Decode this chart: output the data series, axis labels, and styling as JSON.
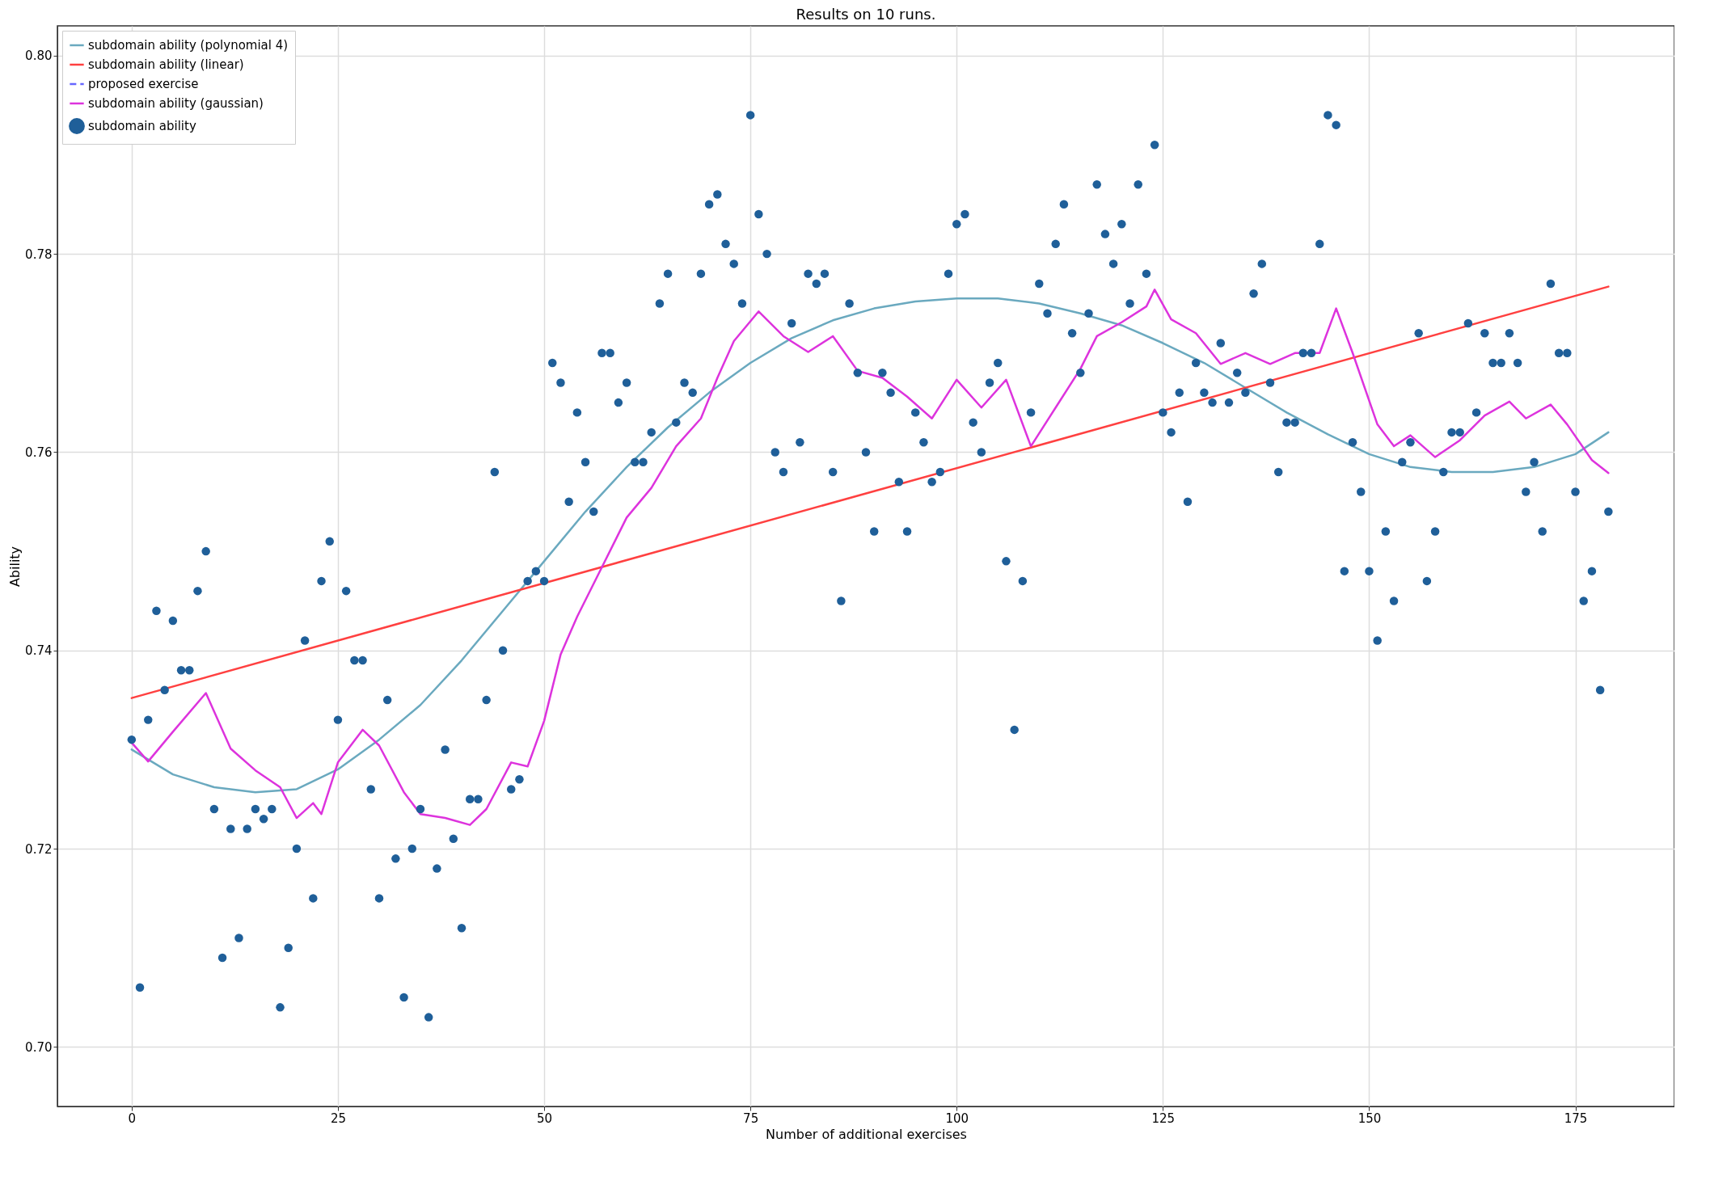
{
  "chart_data": {
    "type": "scatter",
    "title": "Results on 10 runs.",
    "xlabel": "Number of additional exercises",
    "ylabel": "Ability",
    "xlim": [
      -9,
      187
    ],
    "xticks": [
      0,
      25,
      50,
      75,
      100,
      125,
      150,
      175
    ],
    "ylim": [
      0.694,
      0.803
    ],
    "yticks": [
      {
        "value": 0.7,
        "label": "0.70"
      },
      0.72,
      0.74,
      0.76,
      0.78,
      {
        "value": 0.8,
        "label": "0.80"
      }
    ],
    "grid": true,
    "legend": "top left",
    "x": [
      0,
      1,
      2,
      3,
      4,
      5,
      6,
      7,
      8,
      9,
      10,
      11,
      12,
      13,
      14,
      15,
      16,
      17,
      18,
      19,
      20,
      21,
      22,
      23,
      24,
      25,
      26,
      27,
      28,
      29,
      30,
      31,
      32,
      33,
      34,
      35,
      36,
      37,
      38,
      39,
      40,
      41,
      42,
      43,
      44,
      45,
      46,
      47,
      48,
      49,
      50,
      51,
      52,
      53,
      54,
      55,
      56,
      57,
      58,
      59,
      60,
      61,
      62,
      63,
      64,
      65,
      66,
      67,
      68,
      69,
      70,
      71,
      72,
      73,
      74,
      75,
      76,
      77,
      78,
      79,
      80,
      81,
      82,
      83,
      84,
      85,
      86,
      87,
      88,
      89,
      90,
      91,
      92,
      93,
      94,
      95,
      96,
      97,
      98,
      99,
      100,
      101,
      102,
      103,
      104,
      105,
      106,
      107,
      108,
      109,
      110,
      111,
      112,
      113,
      114,
      115,
      116,
      117,
      118,
      119,
      120,
      121,
      122,
      123,
      124,
      125,
      126,
      127,
      128,
      129,
      130,
      131,
      132,
      133,
      134,
      135,
      136,
      137,
      138,
      139,
      140,
      141,
      142,
      143,
      144,
      145,
      146,
      147,
      148,
      149,
      150,
      151,
      152,
      153,
      154,
      155,
      156,
      157,
      158,
      159,
      160,
      161,
      162,
      163,
      164,
      165,
      166,
      167,
      168,
      169,
      170,
      171,
      172,
      173,
      174,
      175,
      176,
      177,
      178,
      179
    ],
    "series": [
      {
        "name": "subdomain ability (polynomial 4)",
        "type": "line",
        "color": "#6aa9bf",
        "line_style": "solid",
        "x": [
          0,
          5,
          10,
          15,
          20,
          25,
          30,
          35,
          40,
          45,
          50,
          55,
          60,
          65,
          70,
          75,
          80,
          85,
          90,
          95,
          100,
          105,
          110,
          115,
          120,
          125,
          130,
          135,
          140,
          145,
          150,
          155,
          160,
          165,
          170,
          175,
          179
        ],
        "values": [
          0.73,
          0.7275,
          0.7262,
          0.7257,
          0.726,
          0.728,
          0.731,
          0.7345,
          0.739,
          0.744,
          0.749,
          0.754,
          0.7585,
          0.7625,
          0.766,
          0.769,
          0.7715,
          0.7733,
          0.7745,
          0.7752,
          0.7755,
          0.7755,
          0.775,
          0.774,
          0.7728,
          0.771,
          0.769,
          0.7665,
          0.764,
          0.7618,
          0.7598,
          0.7585,
          0.758,
          0.758,
          0.7585,
          0.7598,
          0.762
        ]
      },
      {
        "name": "subdomain ability (linear)",
        "type": "line",
        "color": "#ff4040",
        "line_style": "solid",
        "x": [
          0,
          179
        ],
        "values": [
          0.7352,
          0.7767
        ]
      },
      {
        "name": "proposed exercise",
        "type": "line",
        "color": "#6666ff",
        "line_style": "dashed",
        "values": [
          null,
          null,
          null,
          null,
          null,
          null,
          null,
          null,
          null,
          null,
          null,
          null,
          null,
          null,
          null,
          null,
          null,
          null,
          null,
          null,
          null,
          null,
          null,
          null,
          null,
          null,
          null,
          null,
          null,
          null,
          null,
          null,
          null,
          null,
          null,
          null,
          null,
          null,
          null,
          null,
          null,
          null,
          null,
          null,
          null,
          null,
          null,
          null,
          null,
          null,
          null,
          null,
          null,
          null,
          null,
          null,
          null,
          null,
          null,
          null,
          null,
          null,
          null,
          null,
          null,
          null,
          null,
          null,
          null,
          null,
          null,
          null,
          null,
          null,
          null,
          null,
          null,
          null,
          null,
          null,
          null,
          null,
          null,
          null,
          null,
          null,
          null,
          null,
          null,
          null,
          null,
          null,
          null,
          null,
          null,
          null,
          null,
          null,
          null,
          null,
          null,
          null,
          null,
          null,
          null,
          null,
          null,
          null,
          null,
          null,
          null,
          null,
          null,
          null,
          null,
          null,
          null,
          null,
          null,
          null,
          null,
          null,
          null,
          null,
          null,
          null,
          null,
          null,
          null,
          null,
          null,
          null,
          null,
          null,
          null,
          null,
          null,
          null,
          null,
          null,
          null,
          null,
          null,
          null,
          null,
          null,
          null,
          null,
          null,
          null,
          null,
          null,
          null,
          null,
          null,
          null,
          null,
          null,
          null,
          null,
          null,
          null,
          null,
          null,
          null,
          null,
          null,
          null,
          null,
          null,
          null,
          null,
          null,
          null,
          null,
          null,
          null,
          null,
          null,
          null
        ]
      },
      {
        "name": "subdomain ability (gaussian)",
        "type": "line",
        "color": "#dd33dd",
        "line_style": "solid",
        "x": [
          0,
          2,
          5,
          9,
          12,
          15,
          18,
          20,
          22,
          23,
          25,
          28,
          30,
          33,
          35,
          38,
          41,
          43,
          46,
          48,
          50,
          52,
          54,
          57,
          60,
          63,
          66,
          69,
          71,
          73,
          76,
          79,
          82,
          85,
          88,
          91,
          94,
          97,
          100,
          103,
          106,
          109,
          112,
          115,
          117,
          120,
          123,
          124,
          126,
          129,
          132,
          135,
          138,
          141,
          144,
          146,
          148,
          151,
          153,
          155,
          158,
          161,
          164,
          167,
          169,
          172,
          174,
          177,
          179
        ],
        "values": [
          0.7307,
          0.7288,
          0.7318,
          0.7357,
          0.7301,
          0.7279,
          0.7262,
          0.7231,
          0.7246,
          0.7235,
          0.7287,
          0.732,
          0.7304,
          0.7257,
          0.7235,
          0.7231,
          0.7224,
          0.724,
          0.7287,
          0.7283,
          0.7329,
          0.7396,
          0.7434,
          0.7484,
          0.7534,
          0.7564,
          0.7606,
          0.7634,
          0.7675,
          0.7712,
          0.7742,
          0.7717,
          0.7701,
          0.7717,
          0.7682,
          0.7675,
          0.7656,
          0.7634,
          0.7673,
          0.7645,
          0.7673,
          0.7606,
          0.7645,
          0.7684,
          0.7717,
          0.7731,
          0.7747,
          0.7764,
          0.7734,
          0.772,
          0.7689,
          0.77,
          0.7689,
          0.77,
          0.77,
          0.7745,
          0.77,
          0.7628,
          0.7606,
          0.7617,
          0.7595,
          0.7612,
          0.7637,
          0.7651,
          0.7634,
          0.7648,
          0.7628,
          0.7592,
          0.7579
        ]
      },
      {
        "name": "subdomain ability",
        "color": "#1f5f99",
        "marker": "circle",
        "values": [
          0.731,
          0.706,
          0.733,
          0.744,
          0.736,
          0.743,
          0.738,
          0.738,
          0.746,
          0.75,
          0.724,
          0.709,
          0.722,
          0.711,
          0.722,
          0.724,
          0.723,
          0.724,
          0.704,
          0.71,
          0.72,
          0.741,
          0.715,
          0.747,
          0.751,
          0.733,
          0.746,
          0.739,
          0.739,
          0.726,
          0.715,
          0.735,
          0.719,
          0.705,
          0.72,
          0.724,
          0.703,
          0.718,
          0.73,
          0.721,
          0.712,
          0.725,
          0.725,
          0.735,
          0.758,
          0.74,
          0.726,
          0.727,
          0.747,
          0.748,
          0.747,
          0.769,
          0.767,
          0.755,
          0.764,
          0.759,
          0.754,
          0.77,
          0.77,
          0.765,
          0.767,
          0.759,
          0.759,
          0.762,
          0.775,
          0.778,
          0.763,
          0.767,
          0.766,
          0.778,
          0.785,
          0.786,
          0.781,
          0.779,
          0.775,
          0.794,
          0.784,
          0.78,
          0.76,
          0.758,
          0.773,
          0.761,
          0.778,
          0.777,
          0.778,
          0.758,
          0.745,
          0.775,
          0.768,
          0.76,
          0.752,
          0.768,
          0.766,
          0.757,
          0.752,
          0.764,
          0.761,
          0.757,
          0.758,
          0.778,
          0.783,
          0.784,
          0.763,
          0.76,
          0.767,
          0.769,
          0.749,
          0.732,
          0.747,
          0.764,
          0.777,
          0.774,
          0.781,
          0.785,
          0.772,
          0.768,
          0.774,
          0.787,
          0.782,
          0.779,
          0.783,
          0.775,
          0.787,
          0.778,
          0.791,
          0.764,
          0.762,
          0.766,
          0.755,
          0.769,
          0.766,
          0.765,
          0.771,
          0.765,
          0.768,
          0.766,
          0.776,
          0.779,
          0.767,
          0.758,
          0.763,
          0.763,
          0.77,
          0.77,
          0.781,
          0.794,
          0.793,
          0.748,
          0.761,
          0.756,
          0.748,
          0.741,
          0.752,
          0.745,
          0.759,
          0.761,
          0.772,
          0.747,
          0.752,
          0.758,
          0.762,
          0.762,
          0.773,
          0.764,
          0.772,
          0.769,
          0.769,
          0.772,
          0.769,
          0.756,
          0.759,
          0.752,
          0.777,
          0.77,
          0.77,
          0.756,
          0.745,
          0.748,
          0.736,
          0.754
        ]
      }
    ]
  }
}
